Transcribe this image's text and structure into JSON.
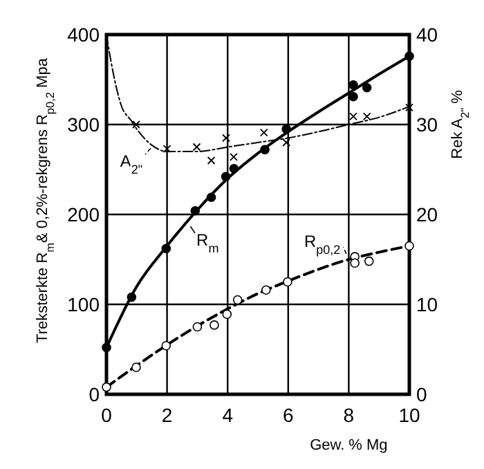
{
  "chart_data": {
    "type": "line",
    "xlabel": "Gew. % Mg",
    "ylabel": "Treksterkte R$_{m}$& 0,2%-rekgrens R$_{p0,2}$  Mpa",
    "y2label": "Rek A$_{2\"}$ %",
    "xlim": [
      0,
      10
    ],
    "xticks": [
      0,
      2,
      4,
      6,
      8,
      10
    ],
    "ylim": [
      0,
      400
    ],
    "yticks": [
      0,
      100,
      200,
      300,
      {
        "value": 400,
        "label": "400"
      }
    ],
    "y2lim": [
      0,
      40
    ],
    "y2ticks": [
      0,
      10,
      20,
      30,
      40
    ],
    "grid": true,
    "legend": "top left",
    "series": [
      {
        "name": "R$_{m}$",
        "color": "#000000",
        "line_style": "solid",
        "x": [
          0,
          1,
          2,
          3,
          4,
          5,
          6,
          7,
          8,
          9,
          10
        ],
        "values": [
          52,
          120,
          165,
          205,
          240,
          268,
          292,
          314,
          335,
          356,
          376
        ]
      },
      {
        "type": "scatter",
        "color": "#000000",
        "marker": "circle",
        "x": [
          0,
          0.83,
          1.97,
          2.93,
          3.46,
          3.94,
          4.21,
          5.23,
          5.94,
          8.15,
          8.15,
          8.6,
          10
        ],
        "values": [
          52,
          108,
          162,
          204,
          219,
          242,
          251,
          272,
          295,
          344,
          331,
          341,
          376
        ]
      },
      {
        "name": "R$_{p0,2}$",
        "color": "#000000",
        "line_style": "dashed",
        "x": [
          0,
          1,
          2,
          3,
          4,
          5,
          6,
          7,
          8,
          9,
          10
        ],
        "values": [
          8,
          32,
          55,
          76,
          95,
          112,
          126,
          139,
          150,
          158,
          165
        ]
      },
      {
        "type": "scatter",
        "color": "#ffffff",
        "marker": "circle",
        "x": [
          0,
          0.98,
          1.97,
          3.0,
          3.56,
          3.98,
          4.33,
          5.27,
          5.98,
          8.2,
          8.2,
          8.67,
          10
        ],
        "values": [
          8,
          30,
          54,
          75,
          77,
          89,
          105,
          116,
          125,
          153,
          146,
          148,
          165
        ]
      },
      {
        "name": "A$_{2\"}$",
        "axis": "y2",
        "color": "#000000",
        "line_style": "dotted",
        "x": [
          0,
          0.15,
          0.3,
          0.5,
          0.8,
          1,
          1.5,
          2,
          3,
          4,
          5,
          6,
          7,
          8,
          9,
          10
        ],
        "values": [
          40,
          37,
          34.5,
          32,
          30.5,
          29.5,
          27.7,
          27,
          27,
          27.5,
          28,
          28.5,
          29.2,
          30,
          30.8,
          32
        ]
      },
      {
        "type": "scatter",
        "axis": "y2",
        "color": "#000000",
        "marker": "cross",
        "x": [
          0.98,
          2,
          2.98,
          3.46,
          3.95,
          4.2,
          5.2,
          5.94,
          8.15,
          8.6,
          10
        ],
        "values": [
          30,
          27.3,
          27.5,
          26,
          28.5,
          26.4,
          29.1,
          28,
          30.9,
          30.9,
          31.9
        ]
      }
    ]
  }
}
